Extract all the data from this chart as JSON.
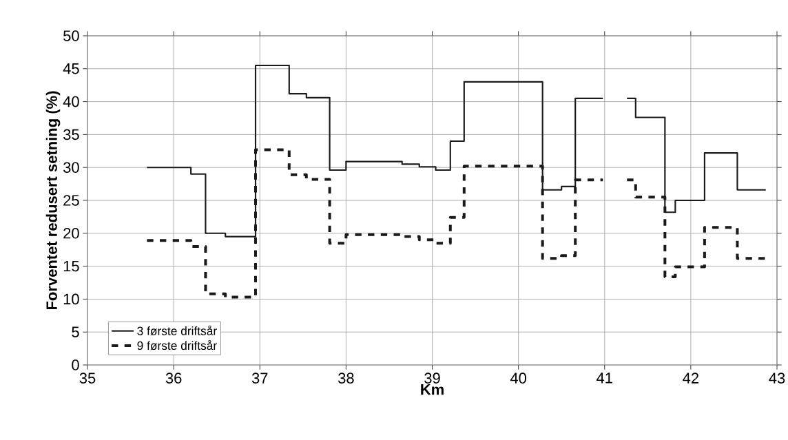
{
  "chart_data": {
    "type": "step",
    "xlabel": "Km",
    "ylabel": "Forventet redusert setning (%)",
    "xlim": [
      35,
      43
    ],
    "xticks": [
      35,
      36,
      37,
      38,
      39,
      40,
      41,
      42,
      43
    ],
    "ylim": [
      0,
      50
    ],
    "yticks": [
      0,
      5,
      10,
      15,
      20,
      25,
      30,
      35,
      40,
      45,
      50
    ],
    "grid": true,
    "legend": "bottom left",
    "series": [
      {
        "name": "3 første driftsår",
        "color": "#1a1a1a",
        "line_style": "solid",
        "x": [
          35.69,
          36.2,
          36.37,
          36.6,
          36.95,
          37.34,
          37.54,
          37.81,
          38.0,
          38.65,
          38.85,
          39.04,
          39.21,
          39.37,
          40.28,
          40.5,
          40.66,
          40.98,
          41.26,
          41.36,
          41.7,
          41.82,
          42.16,
          42.54,
          42.87
        ],
        "values": [
          30,
          29,
          20,
          19.5,
          45.5,
          41.2,
          40.6,
          29.6,
          30.9,
          30.5,
          30.1,
          29.6,
          34,
          43,
          26.6,
          27.1,
          40.5,
          null,
          40.5,
          37.6,
          23.2,
          25,
          32.2,
          26.6,
          26.6
        ]
      },
      {
        "name": "9 første driftsår",
        "color": "#1a1a1a",
        "line_style": "dashed",
        "x": [
          35.69,
          36.2,
          36.37,
          36.6,
          36.95,
          37.34,
          37.54,
          37.81,
          38.0,
          38.65,
          38.85,
          39.04,
          39.21,
          39.37,
          40.28,
          40.5,
          40.66,
          40.98,
          41.26,
          41.36,
          41.7,
          41.82,
          42.16,
          42.54,
          42.87
        ],
        "values": [
          18.9,
          18,
          10.8,
          10.3,
          32.7,
          28.9,
          28.2,
          18.5,
          19.8,
          19.5,
          19,
          18.5,
          22.4,
          30.2,
          16.2,
          16.6,
          28.1,
          null,
          28.1,
          25.5,
          13.4,
          14.9,
          20.9,
          16.2,
          16.2
        ]
      }
    ]
  }
}
